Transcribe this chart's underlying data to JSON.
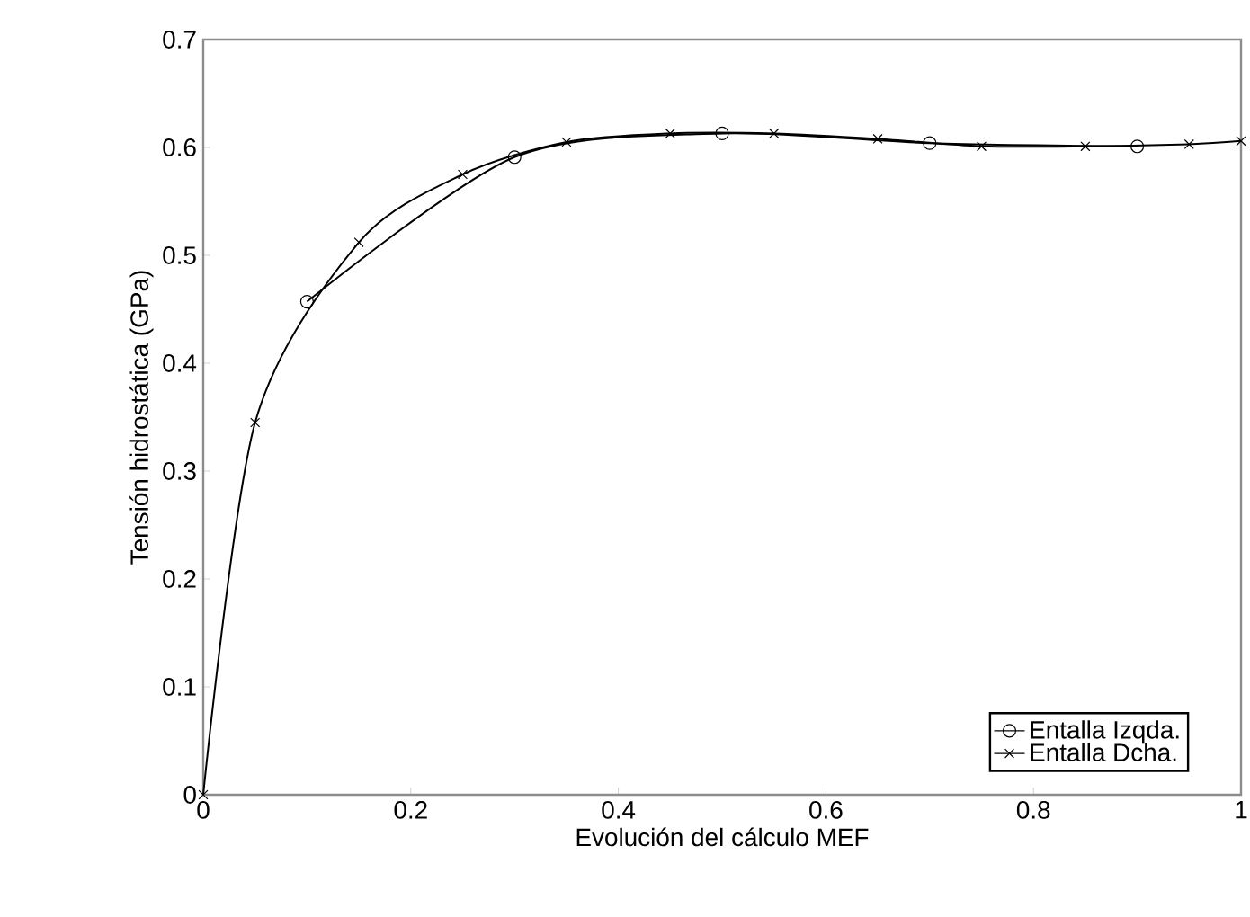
{
  "chart_data": {
    "type": "line",
    "xlabel": "Evolución del cálculo MEF",
    "ylabel": "Tensión hidrostática (GPa)",
    "xlim": [
      0,
      1
    ],
    "ylim": [
      0,
      0.7
    ],
    "xticks": [
      0,
      0.2,
      0.4,
      0.6,
      0.8,
      1
    ],
    "yticks": [
      0,
      0.1,
      0.2,
      0.3,
      0.4,
      0.5,
      0.6,
      0.7
    ],
    "grid": false,
    "legend": "bottom right",
    "line_style": "solid",
    "series": [
      {
        "name": "Entalla Izqda.",
        "color": "#000000",
        "marker": "circle",
        "x": [
          0.1,
          0.3,
          0.5,
          0.7,
          0.9
        ],
        "values": [
          0.457,
          0.591,
          0.613,
          0.604,
          0.601
        ]
      },
      {
        "name": "Entalla Dcha.",
        "color": "#000000",
        "marker": "cross",
        "x": [
          0,
          0.05,
          0.15,
          0.25,
          0.35,
          0.45,
          0.55,
          0.65,
          0.75,
          0.85,
          0.95,
          1
        ],
        "values": [
          0,
          0.345,
          0.512,
          0.575,
          0.605,
          0.613,
          0.613,
          0.608,
          0.601,
          0.601,
          0.603,
          0.606
        ]
      }
    ]
  }
}
